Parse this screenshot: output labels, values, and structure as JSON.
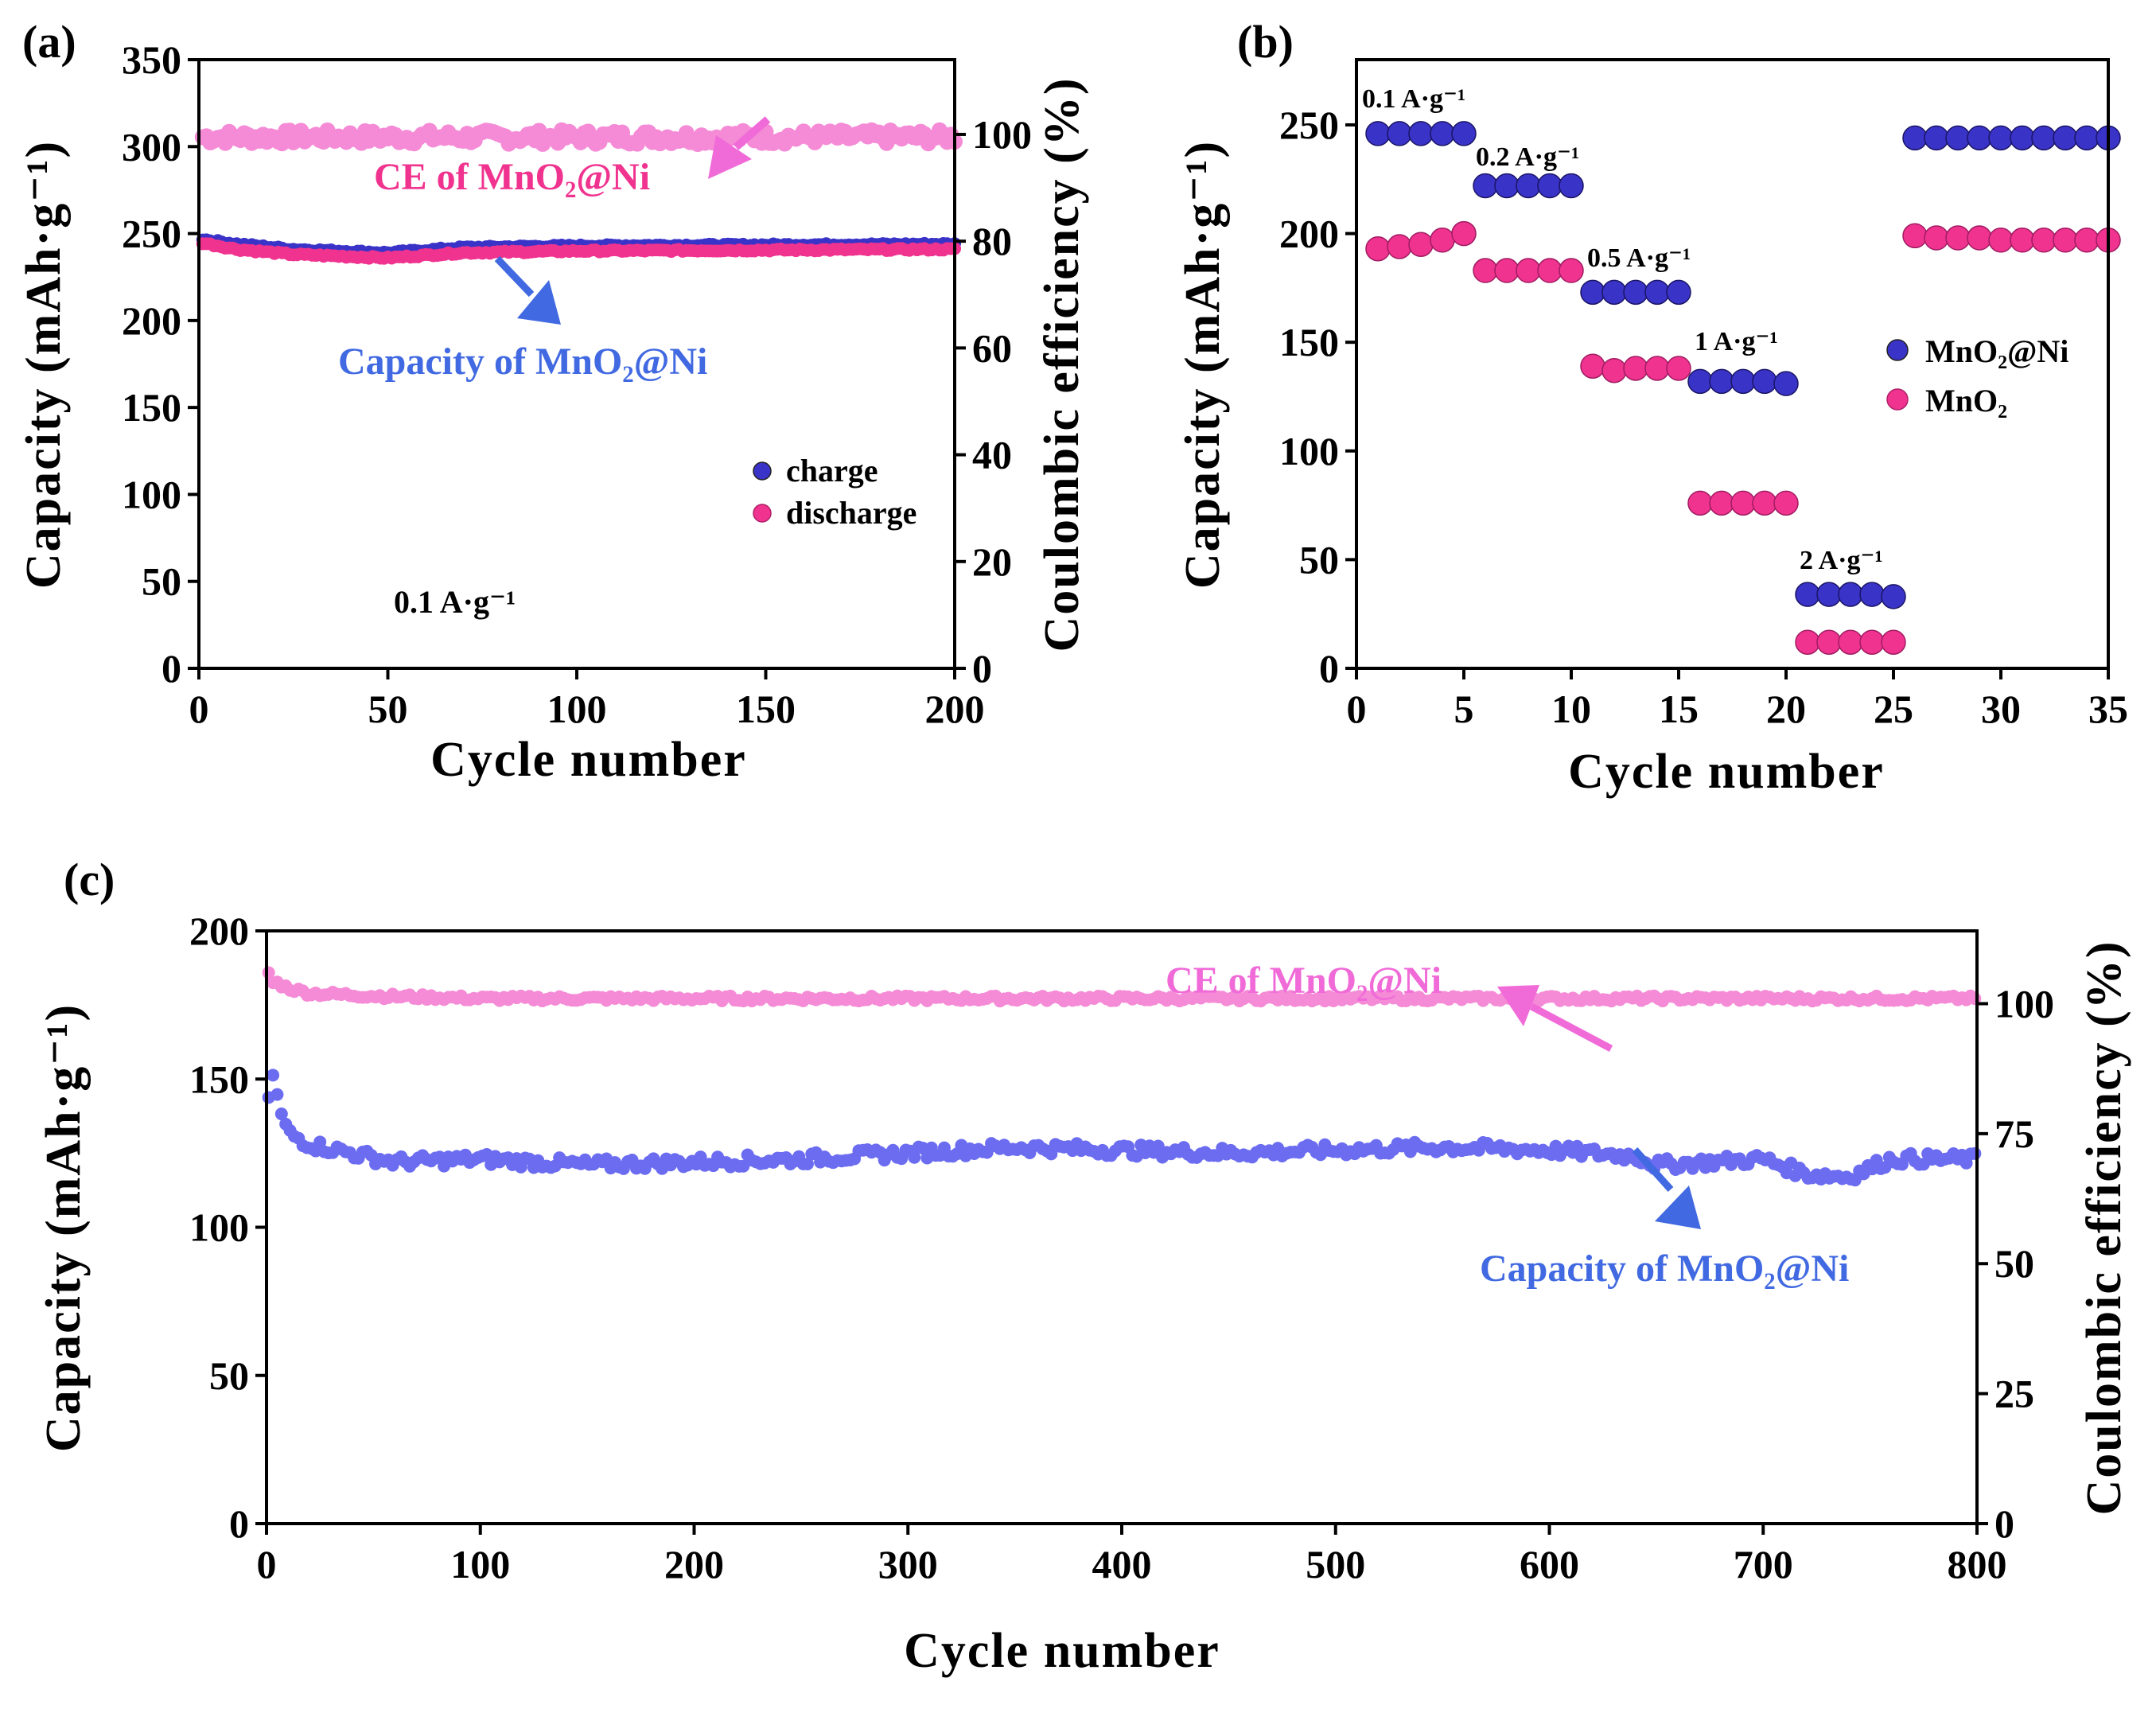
{
  "figure_labels": {
    "a": "(a)",
    "b": "(b)",
    "c": "(c)"
  },
  "colors": {
    "blue": "#3a33c8",
    "blue_light": "#6b6cf0",
    "pink": "#f0338f",
    "pink_light": "#f58bd6",
    "arrow_blue": "#4169e1",
    "arrow_pink": "#f06ad8"
  },
  "chart_data": [
    {
      "panel": "a",
      "type": "scatter",
      "xlabel": "Cycle number",
      "ylabel": "Capacity (mAh·g⁻¹)",
      "y2label": "Coulombic efficiency (%)",
      "xlim": [
        0,
        200
      ],
      "ylim": [
        0,
        350
      ],
      "y2lim": [
        0,
        114
      ],
      "xticks": [
        0,
        50,
        100,
        150,
        200
      ],
      "yticks": [
        0,
        50,
        100,
        150,
        200,
        250,
        300,
        350
      ],
      "y2ticks": [
        0,
        20,
        40,
        60,
        80,
        100
      ],
      "series": [
        {
          "name": "charge",
          "axis": "left",
          "color": "#3a33c8",
          "cycles": [
            1,
            200
          ],
          "profile_x": [
            0,
            10,
            25,
            50,
            70,
            100,
            200
          ],
          "profile_y": [
            247,
            244,
            241,
            239,
            242,
            243,
            244
          ]
        },
        {
          "name": "discharge",
          "axis": "left",
          "color": "#f0338f",
          "cycles": [
            1,
            200
          ],
          "profile_x": [
            0,
            10,
            25,
            50,
            70,
            100,
            200
          ],
          "profile_y": [
            245,
            241,
            238,
            236,
            239,
            240,
            241
          ]
        },
        {
          "name": "CE of MnO₂@Ni",
          "axis": "right",
          "color": "#f58bd6",
          "cycles": [
            1,
            200
          ],
          "mean": 99.5,
          "scatter": 1.3
        }
      ],
      "annotations": {
        "ce": "CE of MnO₂@Ni",
        "capacity": "Capacity of MnO₂@Ni",
        "rate": "0.1 A·g⁻¹"
      },
      "legend": {
        "position": "right",
        "items": [
          "charge",
          "discharge"
        ]
      }
    },
    {
      "panel": "b",
      "type": "scatter",
      "xlabel": "Cycle number",
      "ylabel": "Capacity (mAh·g⁻¹)",
      "xlim": [
        0,
        35
      ],
      "ylim": [
        0,
        280
      ],
      "xticks": [
        0,
        5,
        10,
        15,
        20,
        25,
        30,
        35
      ],
      "yticks": [
        0,
        50,
        100,
        150,
        200,
        250
      ],
      "series": [
        {
          "name": "MnO₂@Ni",
          "color": "#3a33c8",
          "x": [
            1,
            2,
            3,
            4,
            5,
            6,
            7,
            8,
            9,
            10,
            11,
            12,
            13,
            14,
            15,
            16,
            17,
            18,
            19,
            20,
            21,
            22,
            23,
            24,
            25,
            26,
            27,
            28,
            29,
            30,
            31,
            32,
            33,
            34,
            35
          ],
          "values": [
            246,
            246,
            246,
            246,
            246,
            222,
            222,
            222,
            222,
            222,
            173,
            173,
            173,
            173,
            173,
            132,
            132,
            132,
            132,
            131,
            34,
            34,
            34,
            34,
            33,
            244,
            244,
            244,
            244,
            244,
            244,
            244,
            244,
            244,
            244
          ]
        },
        {
          "name": "MnO₂",
          "color": "#f0338f",
          "x": [
            1,
            2,
            3,
            4,
            5,
            6,
            7,
            8,
            9,
            10,
            11,
            12,
            13,
            14,
            15,
            16,
            17,
            18,
            19,
            20,
            21,
            22,
            23,
            24,
            25,
            26,
            27,
            28,
            29,
            30,
            31,
            32,
            33,
            34,
            35
          ],
          "values": [
            193,
            194,
            195,
            197,
            200,
            183,
            183,
            183,
            183,
            183,
            139,
            137,
            138,
            138,
            138,
            76,
            76,
            76,
            76,
            76,
            12,
            12,
            12,
            12,
            12,
            199,
            198,
            198,
            198,
            197,
            197,
            197,
            197,
            197,
            197
          ]
        }
      ],
      "rate_labels": [
        "0.1 A·g⁻¹",
        "0.2 A·g⁻¹",
        "0.5 A·g⁻¹",
        "1 A·g⁻¹",
        "2 A·g⁻¹"
      ],
      "legend": {
        "position": "right",
        "items": [
          "MnO₂@Ni",
          "MnO₂"
        ]
      }
    },
    {
      "panel": "c",
      "type": "scatter",
      "xlabel": "Cycle number",
      "ylabel": "Capacity (mAh·g⁻¹)",
      "y2label": "Coulombic efficiency (%)",
      "xlim": [
        0,
        800
      ],
      "ylim": [
        0,
        200
      ],
      "y2lim": [
        0,
        114
      ],
      "xticks": [
        0,
        100,
        200,
        300,
        400,
        500,
        600,
        700,
        800
      ],
      "yticks": [
        0,
        50,
        100,
        150,
        200
      ],
      "y2ticks": [
        0,
        25,
        50,
        75,
        100
      ],
      "series": [
        {
          "name": "Capacity of MnO₂@Ni",
          "axis": "left",
          "color": "#6b6cf0",
          "cycles": [
            1,
            800
          ],
          "step": 2,
          "profile_x": [
            0,
            3,
            6,
            10,
            20,
            40,
            60,
            100,
            150,
            200,
            250,
            300,
            350,
            400,
            450,
            500,
            550,
            600,
            640,
            650,
            700,
            720,
            740,
            760,
            800
          ],
          "profile_y": [
            137,
            152,
            140,
            132,
            128,
            125,
            122,
            123,
            121,
            122,
            123,
            125,
            127,
            126,
            125,
            126,
            127,
            126,
            124,
            121,
            123,
            118,
            117,
            123,
            123
          ]
        },
        {
          "name": "CE of MnO₂@Ni",
          "axis": "right",
          "color": "#f58bd6",
          "cycles": [
            1,
            800
          ],
          "step": 2,
          "profile_x": [
            0,
            2,
            5,
            10,
            20,
            50,
            100,
            800
          ],
          "profile_y": [
            108,
            104,
            104,
            103,
            102,
            101.5,
            101,
            101
          ]
        }
      ],
      "annotations": {
        "ce": "CE of MnO₂@Ni",
        "capacity": "Capacity of MnO₂@Ni"
      }
    }
  ]
}
